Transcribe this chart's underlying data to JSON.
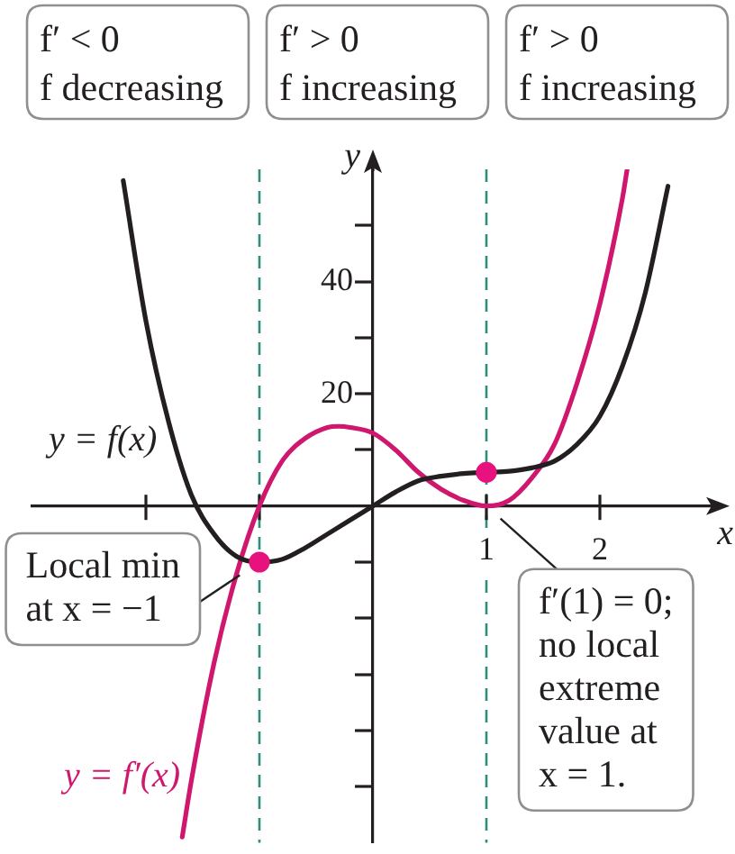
{
  "chart_data": {
    "type": "line",
    "xlabel": "x",
    "ylabel": "y",
    "annotations": [
      "f′ < 0\nf decreasing",
      "f′ > 0\nf increasing",
      "f′ > 0\nf increasing",
      {
        "text": "Local min\nat x = −1",
        "x": -1,
        "y": -10
      },
      {
        "text": "f′(1) = 0;\nno local\nextreme\nvalue at\nx = 1.",
        "x": 1,
        "y": 0
      }
    ],
    "series": [
      {
        "name": "y = f(x)",
        "color": "#231f20",
        "marker": "none",
        "x": [
          -2.2,
          -2,
          -1.8,
          -1.6,
          -1.4,
          -1.2,
          -1,
          -0.8,
          -0.6,
          -0.4,
          -0.2,
          0,
          0.2,
          0.4,
          0.6,
          0.8,
          1,
          1.2,
          1.4,
          1.6,
          1.8,
          2,
          2.2,
          2.4,
          2.6
        ],
        "values": [
          58,
          33,
          15,
          2,
          -5,
          -9,
          -10,
          -9.5,
          -7.5,
          -5,
          -2.5,
          0,
          2.5,
          4.5,
          5.3,
          5.8,
          6,
          6.2,
          6.8,
          8,
          11,
          16,
          25,
          38,
          57
        ]
      },
      {
        "name": "y = f′(x)",
        "color": "#d0176e",
        "marker": "none",
        "x": [
          -1.68,
          -1.6,
          -1.4,
          -1.2,
          -1,
          -0.8,
          -0.6,
          -0.4,
          -0.3,
          -0.2,
          0,
          0.2,
          0.4,
          0.6,
          0.8,
          1,
          1.2,
          1.4,
          1.6,
          1.8,
          2,
          2.2,
          2.24
        ],
        "values": [
          -59,
          -49,
          -28,
          -12,
          0,
          8,
          12,
          14,
          14.2,
          14,
          13,
          10,
          6,
          3,
          1,
          0,
          1,
          5,
          11,
          22,
          36,
          55,
          60
        ]
      },
      {
        "type": "scatter",
        "color": "#e8127f",
        "marker": "circle",
        "x": [
          -1,
          1
        ],
        "values": [
          -10,
          6
        ]
      }
    ],
    "xlim": [
      -3,
      3
    ],
    "ylim": [
      -60,
      60
    ],
    "xticks": [
      {
        "value": -2,
        "label": null
      },
      {
        "value": -1,
        "label": null
      },
      1,
      2
    ],
    "yticks": [
      {
        "value": -50,
        "label": null
      },
      {
        "value": -40,
        "label": null
      },
      {
        "value": -30,
        "label": null
      },
      {
        "value": -20,
        "label": null
      },
      {
        "value": -10,
        "label": null
      },
      {
        "value": 10,
        "label": null
      },
      20,
      {
        "value": 30,
        "label": null
      },
      40,
      {
        "value": 50,
        "label": null
      }
    ],
    "ref_lines": [
      {
        "axis": "x",
        "value": -1,
        "color": "#2f8c7e",
        "line_style": "dashed"
      },
      {
        "axis": "x",
        "value": 1,
        "color": "#2f8c7e",
        "line_style": "dashed"
      }
    ],
    "grid": false,
    "legend": false
  }
}
